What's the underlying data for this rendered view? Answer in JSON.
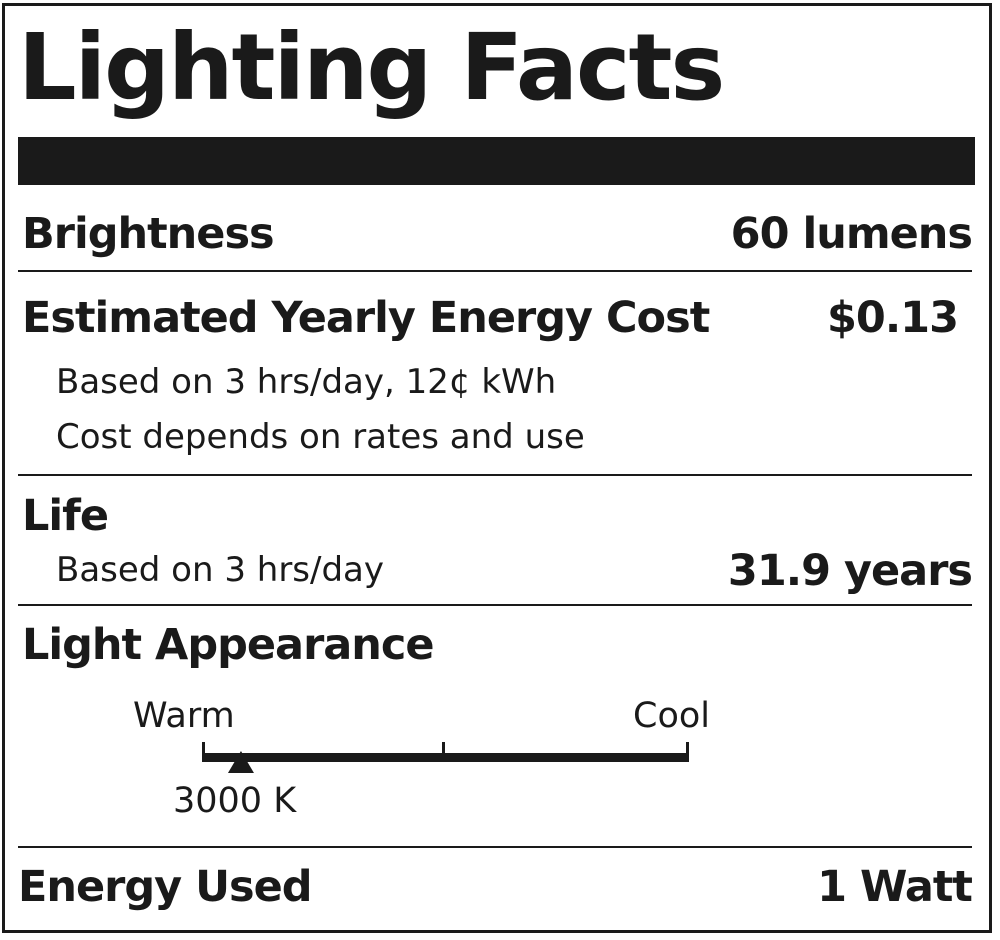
{
  "title": "Lighting Facts",
  "brightness": {
    "label": "Brightness",
    "value": "60 lumens"
  },
  "energy_cost": {
    "label": "Estimated Yearly Energy Cost",
    "value": "$0.13",
    "note1": "Based on 3 hrs/day, 12¢ kWh",
    "note2": "Cost depends on rates and use"
  },
  "life": {
    "label": "Life",
    "note": "Based on 3 hrs/day",
    "value": "31.9 years"
  },
  "light_appearance": {
    "label": "Light Appearance",
    "warm_label": "Warm",
    "cool_label": "Cool",
    "marker_value": "3000 K",
    "marker_position": 0.08
  },
  "energy_used": {
    "label": "Energy Used",
    "value": "1 Watt"
  }
}
